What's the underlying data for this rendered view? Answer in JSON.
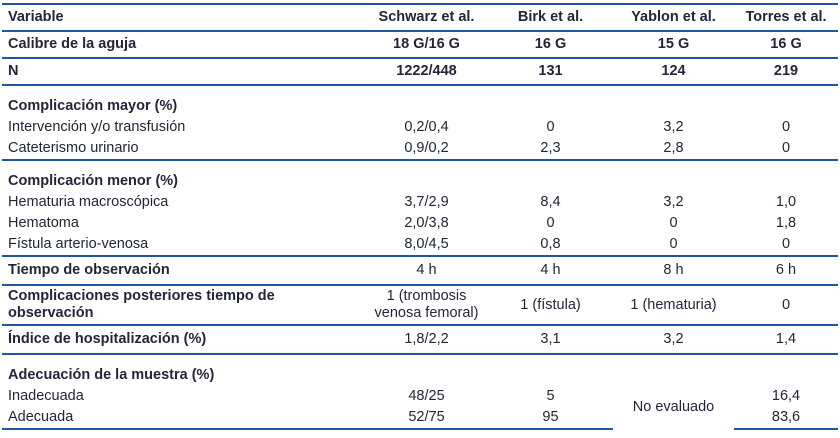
{
  "colors": {
    "rule": "#1f55a4",
    "text": "#23263a",
    "bg": "#ffffff"
  },
  "table": {
    "header": {
      "variable": "Variable",
      "cols": [
        "Schwarz et al.",
        "Birk et al.",
        "Yablon et al.",
        "Torres et al."
      ]
    },
    "rows": {
      "calibre": {
        "label": "Calibre de la aguja",
        "values": [
          "18 G/16 G",
          "16 G",
          "15 G",
          "16 G"
        ]
      },
      "n": {
        "label": "N",
        "values": [
          "1222/448",
          "131",
          "124",
          "219"
        ]
      },
      "seccion_mayor": {
        "label": "Complicación mayor (%)"
      },
      "intervencion": {
        "label": "Intervención y/o transfusión",
        "values": [
          "0,2/0,4",
          "0",
          "3,2",
          "0"
        ]
      },
      "cateterismo": {
        "label": "Cateterismo urinario",
        "values": [
          "0,9/0,2",
          "2,3",
          "2,8",
          "0"
        ]
      },
      "seccion_menor": {
        "label": "Complicación menor (%)"
      },
      "hematuria": {
        "label": "Hematuria macroscópica",
        "values": [
          "3,7/2,9",
          "8,4",
          "3,2",
          "1,0"
        ]
      },
      "hematoma": {
        "label": "Hematoma",
        "values": [
          "2,0/3,8",
          "0",
          "0",
          "1,8"
        ]
      },
      "fistula": {
        "label": "Fístula arterio-venosa",
        "values": [
          "8,0/4,5",
          "0,8",
          "0",
          "0"
        ]
      },
      "tiempo": {
        "label": "Tiempo de observación",
        "values": [
          "4 h",
          "4 h",
          "8 h",
          "6 h"
        ]
      },
      "posteriores": {
        "label": "Complicaciones posteriores tiempo de observación",
        "values": [
          "1 (trombosis venosa femoral)",
          "1 (fístula)",
          "1 (hematuria)",
          "0"
        ]
      },
      "indice": {
        "label": "Índice de hospitalización (%)",
        "values": [
          "1,8/2,2",
          "3,1",
          "3,2",
          "1,4"
        ]
      },
      "seccion_adecuacion": {
        "label": "Adecuación de la muestra (%)"
      },
      "inadecuada": {
        "label": "Inadecuada",
        "values": [
          "48/25",
          "5",
          "16,4"
        ]
      },
      "adecuada": {
        "label": "Adecuada",
        "values": [
          "52/75",
          "95",
          "83,6"
        ]
      },
      "no_evaluado": "No evaluado"
    }
  }
}
